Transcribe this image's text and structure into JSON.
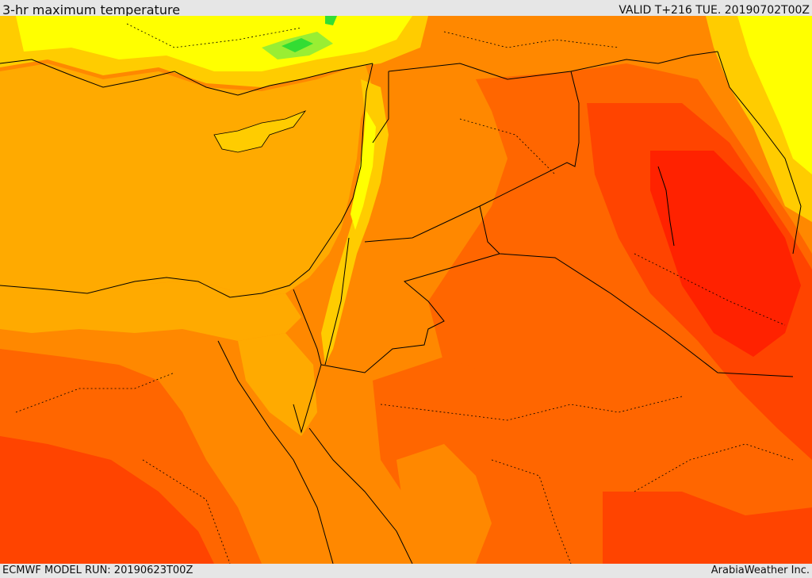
{
  "header": {
    "title": "3-hr maximum temperature",
    "valid": "VALID T+216 TUE. 20190702T00Z"
  },
  "footer": {
    "model_run": "ECMWF MODEL RUN: 20190623T00Z",
    "credit": "ArabiaWeather Inc."
  },
  "palette": {
    "green": "#33dd33",
    "light_green": "#99ee33",
    "yellow": "#ffff00",
    "gold": "#ffcc00",
    "light_orange": "#ffaa00",
    "orange": "#ff8800",
    "dark_orange": "#ff6600",
    "red_orange": "#ff4400",
    "red": "#ff2200",
    "boundary": "#000000"
  }
}
